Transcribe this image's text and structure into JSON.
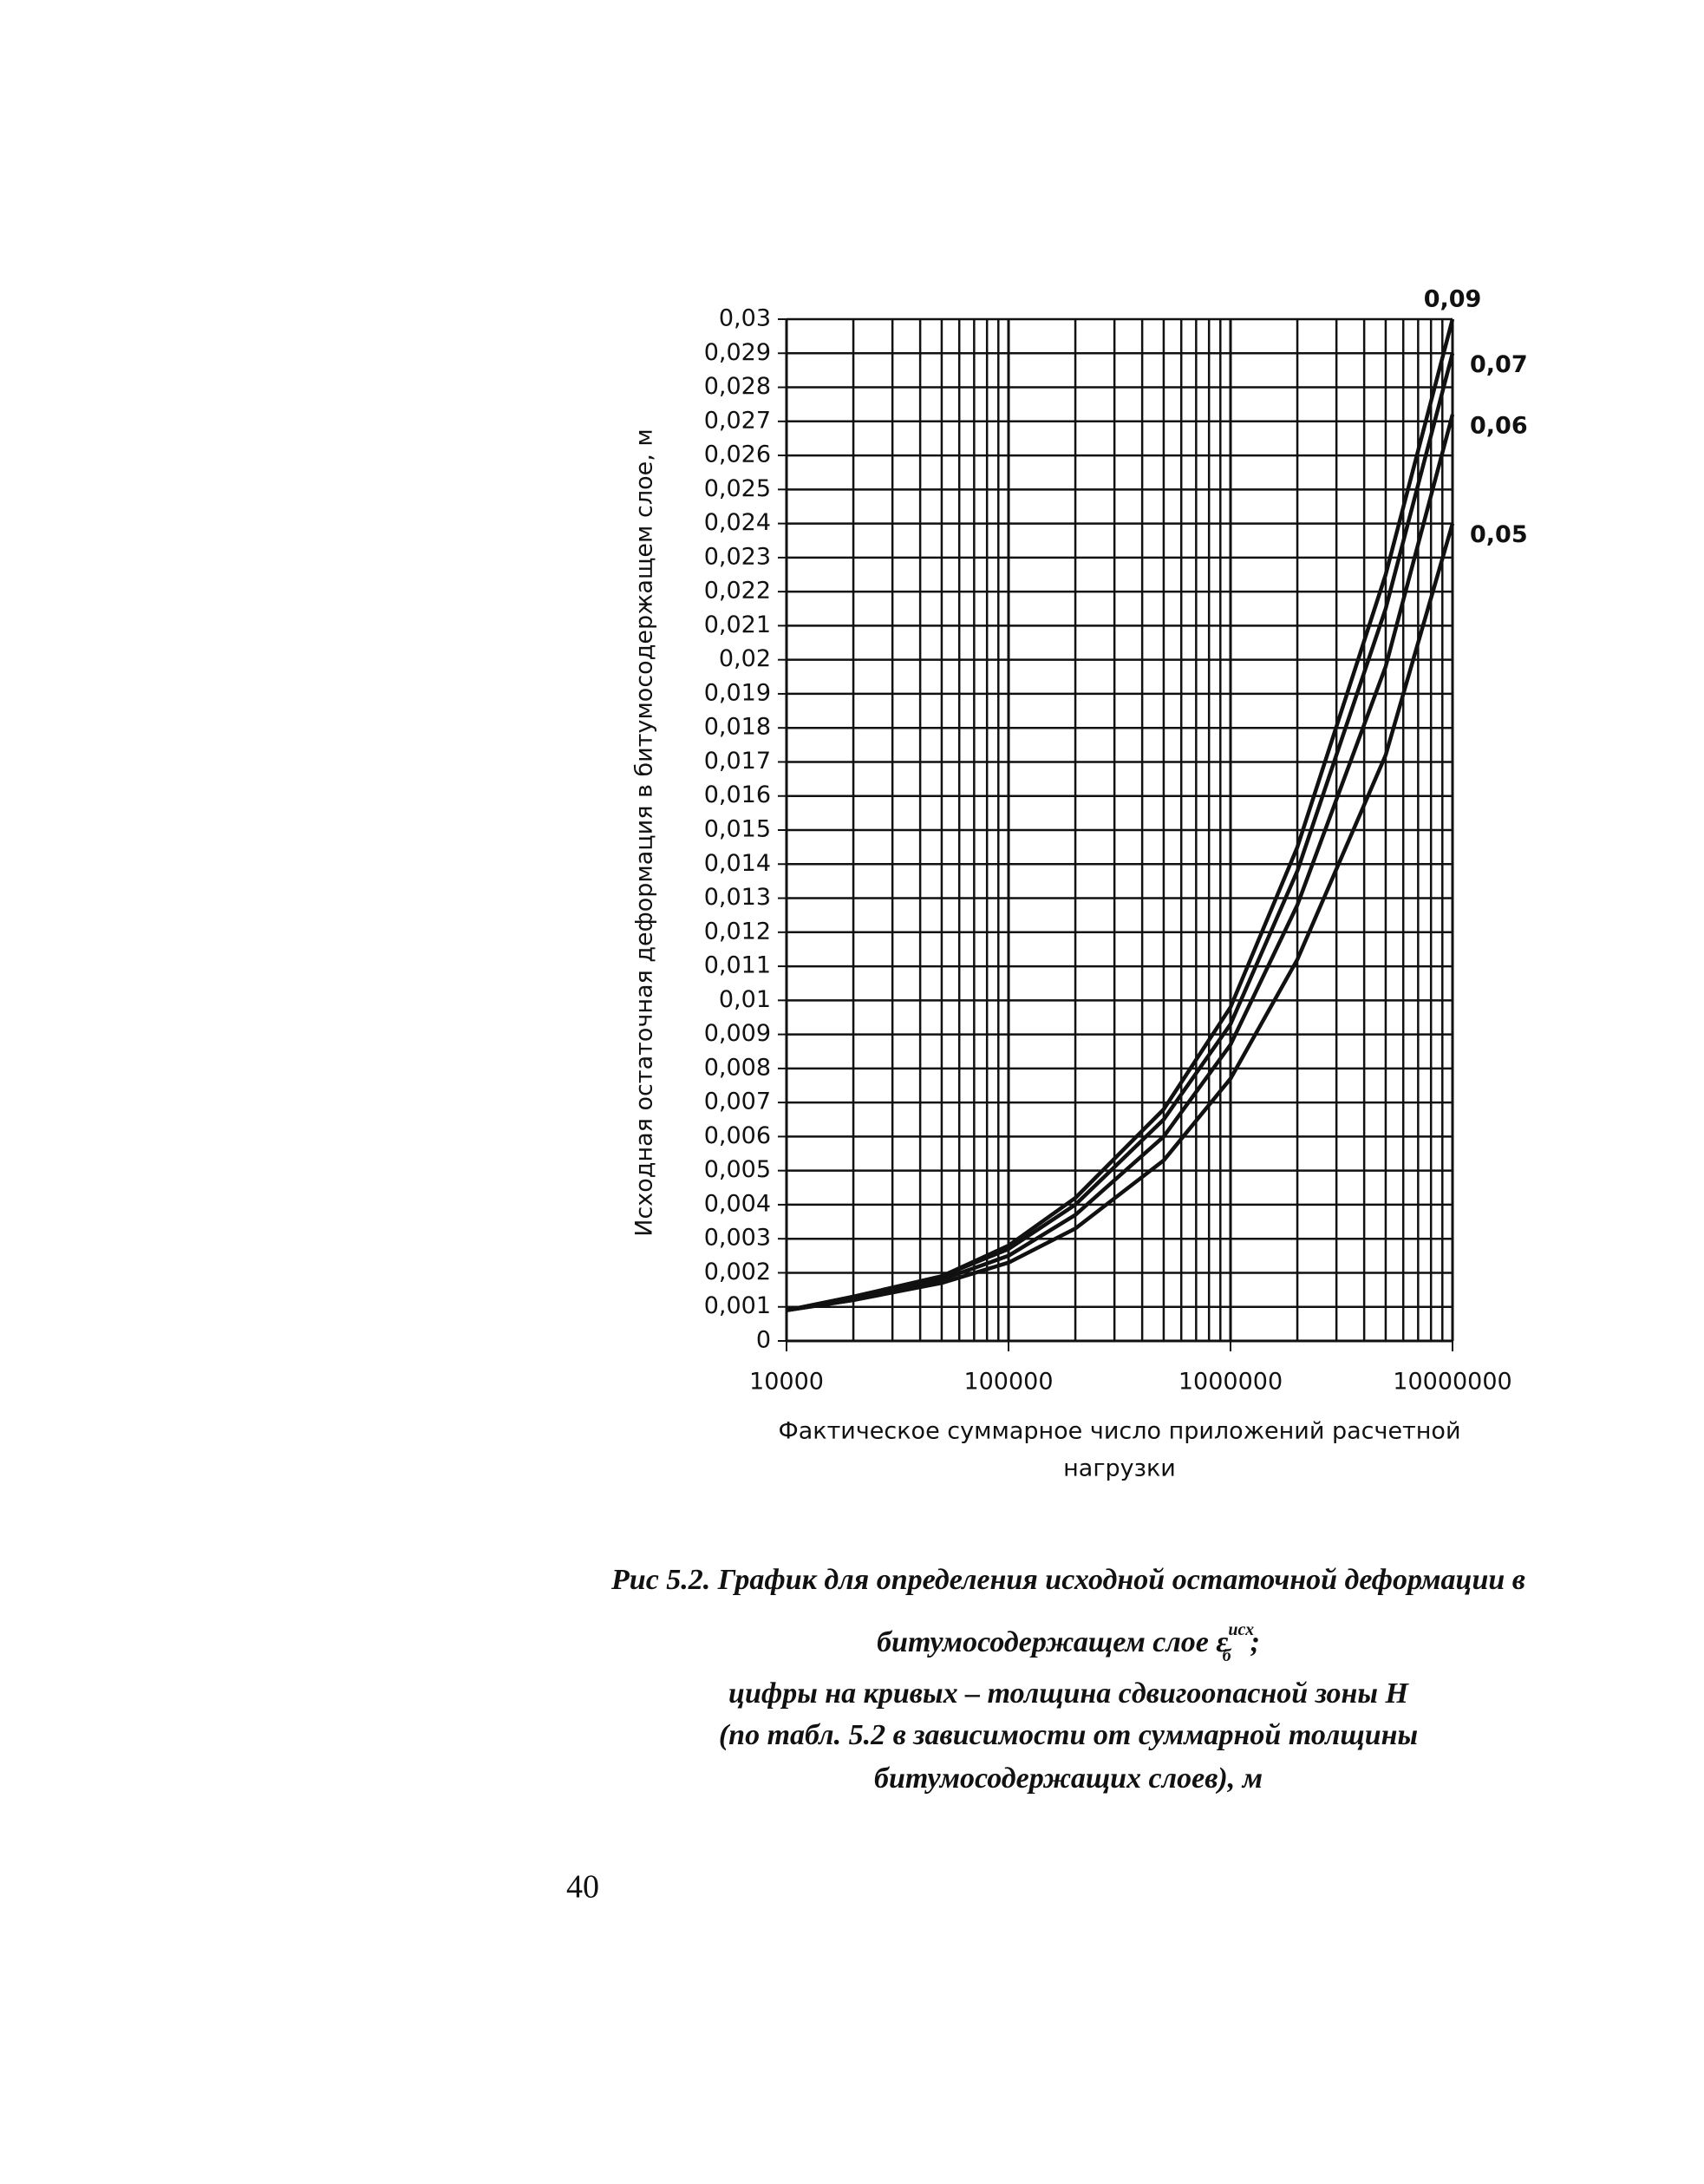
{
  "chart_data": {
    "type": "line",
    "ylabel": "Исходная остаточная деформация в битумосодержащем слое, м",
    "xlabel": [
      "Фактическое суммарное число приложений расчетной",
      "нагрузки"
    ],
    "x": [
      10000,
      20000,
      50000,
      100000,
      200000,
      500000,
      1000000,
      2000000,
      5000000,
      10000000
    ],
    "series": [
      {
        "name": "0,09",
        "color": "#111111",
        "values": [
          0.0009,
          0.0013,
          0.0019,
          0.0028,
          0.0042,
          0.0068,
          0.0098,
          0.0145,
          0.0225,
          0.03
        ]
      },
      {
        "name": "0,07",
        "color": "#111111",
        "values": [
          0.0009,
          0.0013,
          0.0019,
          0.0027,
          0.004,
          0.0065,
          0.0093,
          0.0138,
          0.0215,
          0.029
        ]
      },
      {
        "name": "0,06",
        "color": "#111111",
        "values": [
          0.0009,
          0.0012,
          0.0018,
          0.0025,
          0.0037,
          0.006,
          0.0087,
          0.0128,
          0.0198,
          0.0272
        ]
      },
      {
        "name": "0,05",
        "color": "#111111",
        "values": [
          0.0009,
          0.0012,
          0.0017,
          0.0023,
          0.0033,
          0.0053,
          0.0077,
          0.0112,
          0.0172,
          0.024
        ]
      }
    ],
    "xlim": [
      10000,
      10000000
    ],
    "xticks": [
      10000,
      100000,
      1000000,
      10000000
    ],
    "xscale": "log",
    "ylim": [
      0,
      0.03
    ],
    "yticks": [
      0,
      {
        "value": 0.001,
        "label": "0,001"
      },
      {
        "value": 0.002,
        "label": "0,002"
      },
      {
        "value": 0.003,
        "label": "0,003"
      },
      {
        "value": 0.004,
        "label": "0,004"
      },
      {
        "value": 0.005,
        "label": "0,005"
      },
      {
        "value": 0.006,
        "label": "0,006"
      },
      {
        "value": 0.007,
        "label": "0,007"
      },
      {
        "value": 0.008,
        "label": "0,008"
      },
      {
        "value": 0.009,
        "label": "0,009"
      },
      {
        "value": 0.01,
        "label": "0,01"
      },
      {
        "value": 0.011,
        "label": "0,011"
      },
      {
        "value": 0.012,
        "label": "0,012"
      },
      {
        "value": 0.013,
        "label": "0,013"
      },
      {
        "value": 0.014,
        "label": "0,014"
      },
      {
        "value": 0.015,
        "label": "0,015"
      },
      {
        "value": 0.016,
        "label": "0,016"
      },
      {
        "value": 0.017,
        "label": "0,017"
      },
      {
        "value": 0.018,
        "label": "0,018"
      },
      {
        "value": 0.019,
        "label": "0,019"
      },
      {
        "value": 0.02,
        "label": "0,02"
      },
      {
        "value": 0.021,
        "label": "0,021"
      },
      {
        "value": 0.022,
        "label": "0,022"
      },
      {
        "value": 0.023,
        "label": "0,023"
      },
      {
        "value": 0.024,
        "label": "0,024"
      },
      {
        "value": 0.025,
        "label": "0,025"
      },
      {
        "value": 0.026,
        "label": "0,026"
      },
      {
        "value": 0.027,
        "label": "0,027"
      },
      {
        "value": 0.028,
        "label": "0,028"
      },
      {
        "value": 0.029,
        "label": "0,029"
      },
      {
        "value": 0.03,
        "label": "0,03"
      }
    ],
    "grid": true
  },
  "caption": {
    "line1": "Рис 5.2. График для определения исходной остаточной деформации в",
    "line2": {
      "text": "битумосодержащем слое",
      "symbol": "ε",
      "sup": "исх",
      "sub": "б",
      "end": ";"
    },
    "line3": "цифры на кривых – толщина сдвигоопасной зоны H",
    "line4": "(по табл. 5.2 в зависимости от суммарной толщины",
    "line5": "битумосодержащих слоев), м"
  },
  "page_number": "40"
}
